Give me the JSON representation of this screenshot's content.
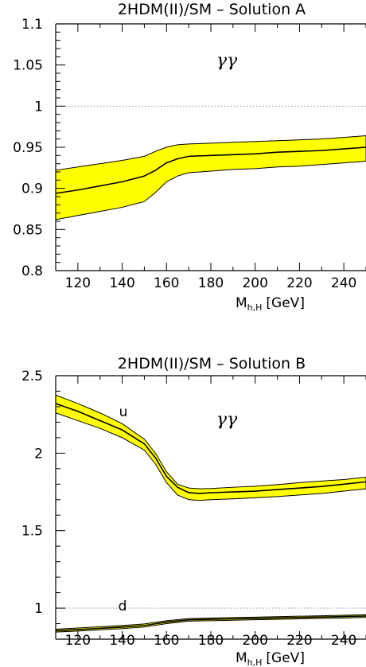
{
  "chart_data": [
    {
      "type": "area",
      "title": "2HDM(II)/SM – Solution A",
      "xlabel": "M",
      "xlabel_sub": "h,H",
      "xlabel_unit": "[GeV]",
      "annotation": "γγ",
      "xlim": [
        110,
        250
      ],
      "ylim": [
        0.8,
        1.1
      ],
      "xticks": [
        120,
        140,
        160,
        180,
        200,
        220,
        240
      ],
      "yticks": [
        0.8,
        0.85,
        0.9,
        0.95,
        1,
        1.05,
        1.1
      ],
      "ytick_labels": [
        "0.8",
        "0.85",
        "0.9",
        "0.95",
        "1",
        "1.05",
        "1.1"
      ],
      "reference_line": 1.0,
      "band_color": "#ffff00",
      "series": [
        {
          "x": [
            110,
            120,
            130,
            140,
            150,
            155,
            160,
            165,
            170,
            180,
            190,
            200,
            210,
            220,
            230,
            240,
            250
          ],
          "central": [
            0.894,
            0.898,
            0.903,
            0.908,
            0.915,
            0.922,
            0.931,
            0.936,
            0.939,
            0.94,
            0.941,
            0.942,
            0.944,
            0.945,
            0.946,
            0.948,
            0.95
          ],
          "upper": [
            0.922,
            0.926,
            0.93,
            0.934,
            0.939,
            0.945,
            0.95,
            0.953,
            0.954,
            0.955,
            0.956,
            0.957,
            0.958,
            0.959,
            0.96,
            0.962,
            0.964
          ],
          "lower": [
            0.862,
            0.867,
            0.872,
            0.877,
            0.884,
            0.895,
            0.908,
            0.915,
            0.919,
            0.921,
            0.923,
            0.924,
            0.926,
            0.927,
            0.929,
            0.931,
            0.933
          ]
        }
      ]
    },
    {
      "type": "area",
      "title": "2HDM(II)/SM – Solution B",
      "xlabel": "M",
      "xlabel_sub": "h,H",
      "xlabel_unit": "[GeV]",
      "annotation": "γγ",
      "xlim": [
        110,
        250
      ],
      "ylim": [
        0.8,
        2.5
      ],
      "xticks": [
        120,
        140,
        160,
        180,
        200,
        220,
        240
      ],
      "yticks": [
        1,
        1.5,
        2,
        2.5
      ],
      "ytick_labels": [
        "1",
        "1.5",
        "2",
        "2.5"
      ],
      "reference_line": 1.0,
      "band_color": "#ffff00",
      "series": [
        {
          "name": "u",
          "x": [
            110,
            120,
            130,
            140,
            150,
            155,
            160,
            165,
            170,
            175,
            180,
            190,
            200,
            210,
            220,
            230,
            240,
            250
          ],
          "central": [
            2.32,
            2.27,
            2.21,
            2.15,
            2.06,
            1.97,
            1.85,
            1.78,
            1.745,
            1.74,
            1.745,
            1.75,
            1.755,
            1.765,
            1.775,
            1.785,
            1.8,
            1.815
          ],
          "upper": [
            2.375,
            2.32,
            2.26,
            2.19,
            2.09,
            2.0,
            1.88,
            1.8,
            1.775,
            1.77,
            1.772,
            1.78,
            1.787,
            1.797,
            1.81,
            1.82,
            1.83,
            1.845
          ],
          "lower": [
            2.26,
            2.21,
            2.16,
            2.1,
            2.02,
            1.93,
            1.81,
            1.73,
            1.7,
            1.695,
            1.7,
            1.705,
            1.712,
            1.72,
            1.73,
            1.74,
            1.755,
            1.77
          ]
        },
        {
          "name": "d",
          "x": [
            110,
            120,
            130,
            140,
            150,
            160,
            170,
            180,
            190,
            200,
            210,
            220,
            230,
            240,
            250
          ],
          "central": [
            0.855,
            0.862,
            0.87,
            0.878,
            0.888,
            0.91,
            0.925,
            0.928,
            0.931,
            0.934,
            0.937,
            0.94,
            0.943,
            0.946,
            0.949
          ],
          "upper": [
            0.864,
            0.872,
            0.88,
            0.888,
            0.898,
            0.919,
            0.933,
            0.936,
            0.939,
            0.942,
            0.945,
            0.948,
            0.951,
            0.954,
            0.957
          ],
          "lower": [
            0.846,
            0.852,
            0.86,
            0.868,
            0.878,
            0.9,
            0.916,
            0.919,
            0.922,
            0.925,
            0.928,
            0.931,
            0.934,
            0.937,
            0.94
          ]
        }
      ]
    }
  ]
}
